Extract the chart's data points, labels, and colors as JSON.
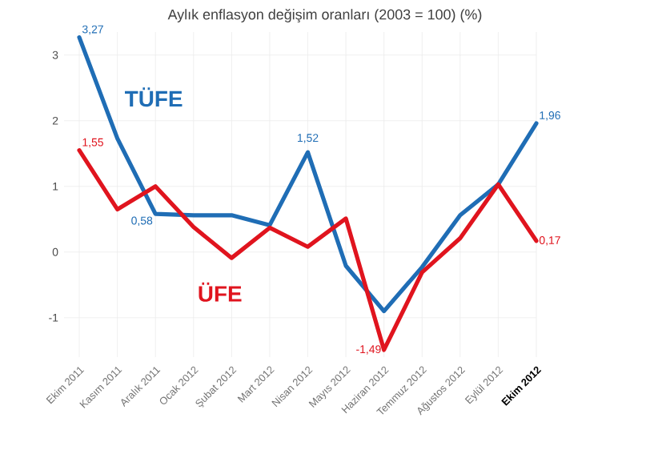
{
  "chart_data": {
    "type": "line",
    "title": "Aylık enflasyon değişim oranları (2003 = 100) (%)",
    "categories": [
      "Ekim 2011",
      "Kasım 2011",
      "Aralık 2011",
      "Ocak 2012",
      "Şubat 2012",
      "Mart 2012",
      "Nisan 2012",
      "Mayıs 2012",
      "Haziran 2012",
      "Temmuz 2012",
      "Ağustos 2012",
      "Eylül 2012",
      "Ekim 2012"
    ],
    "series": [
      {
        "name": "TÜFE",
        "color": "#1f6db5",
        "values": [
          3.27,
          1.73,
          0.58,
          0.56,
          0.56,
          0.41,
          1.52,
          -0.21,
          -0.9,
          -0.23,
          0.56,
          1.03,
          1.96
        ],
        "value_labels": [
          "3,27",
          null,
          "0,58",
          null,
          null,
          null,
          "1,52",
          null,
          null,
          null,
          null,
          null,
          "1,96"
        ]
      },
      {
        "name": "ÜFE",
        "color": "#e0141e",
        "values": [
          1.55,
          0.65,
          1.0,
          0.38,
          -0.09,
          0.37,
          0.08,
          0.51,
          -1.49,
          -0.31,
          0.21,
          1.03,
          0.17
        ],
        "value_labels": [
          "1,55",
          null,
          null,
          null,
          null,
          null,
          null,
          null,
          "-1,49",
          null,
          null,
          null,
          "0,17"
        ]
      }
    ],
    "ylim": [
      -1.6,
      3.35
    ],
    "yticks": [
      -1,
      0,
      1,
      2,
      3
    ],
    "grid": true,
    "marker": "none",
    "line_style": "solid"
  }
}
